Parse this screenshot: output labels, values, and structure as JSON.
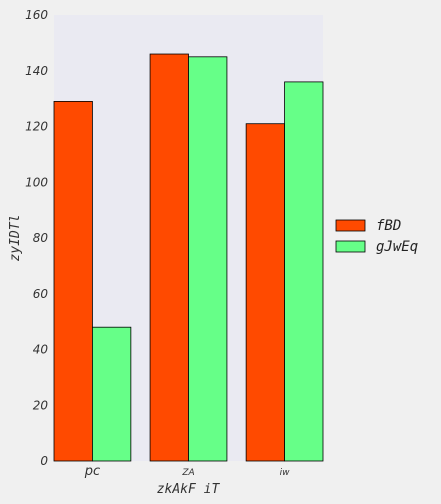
{
  "chart_data": {
    "type": "bar",
    "title": "",
    "xlabel": "zkAkF iT",
    "ylabel": "zyIDTl",
    "categories": [
      "pc",
      "ZA",
      "iw"
    ],
    "series": [
      {
        "name": "fBD",
        "values": [
          129,
          146,
          121
        ],
        "color": "#ff4a00"
      },
      {
        "name": "gJwEq",
        "values": [
          48,
          145,
          136
        ],
        "color": "#66ff88"
      }
    ],
    "ylim": [
      0,
      160
    ],
    "yticks": [
      0,
      20,
      40,
      60,
      80,
      100,
      120,
      140,
      160
    ],
    "grid": false,
    "legend_position": "center-right",
    "plot_background": "#eaeaf2"
  }
}
